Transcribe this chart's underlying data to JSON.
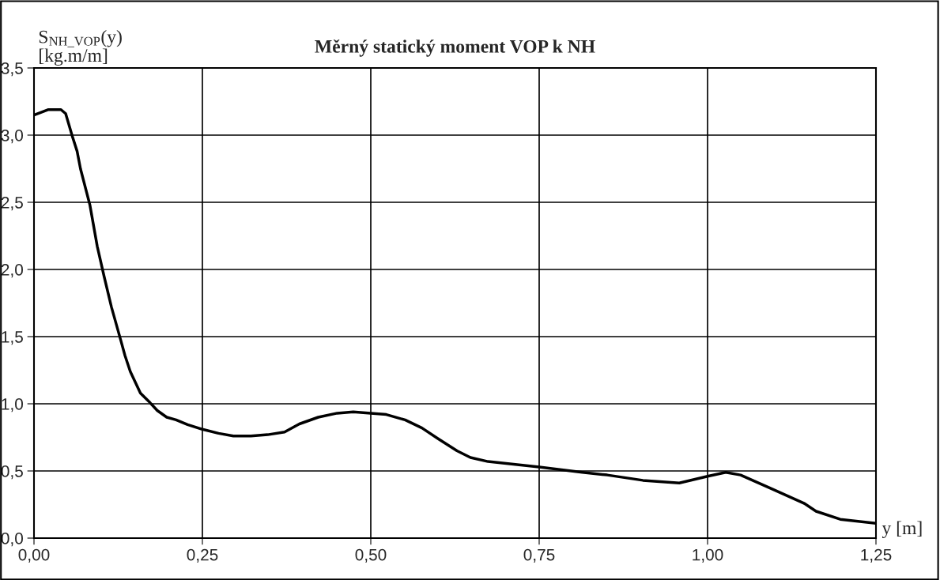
{
  "chart_data": {
    "type": "line",
    "title": "Měrný statický moment VOP k NH",
    "ylabel": "S$_{NH_VOP}$(y)\n[kg.m/m]",
    "xlabel": "y [m]",
    "x": [
      0,
      0.0215,
      0.04,
      0.047,
      0.057,
      0.064,
      0.069,
      0.083,
      0.094,
      0.104,
      0.115,
      0.129,
      0.135,
      0.143,
      0.158,
      0.172,
      0.183,
      0.197,
      0.211,
      0.228,
      0.25,
      0.274,
      0.296,
      0.322,
      0.347,
      0.372,
      0.394,
      0.422,
      0.45,
      0.474,
      0.5,
      0.523,
      0.551,
      0.576,
      0.6,
      0.628,
      0.648,
      0.674,
      0.75,
      0.814,
      0.851,
      0.904,
      0.958,
      1.0,
      1.027,
      1.049,
      1.094,
      1.143,
      1.161,
      1.197,
      1.25
    ],
    "series": [
      {
        "color": "#000000",
        "values": [
          3.15,
          3.19,
          3.19,
          3.16,
          2.99,
          2.88,
          2.75,
          2.48,
          2.17,
          1.95,
          1.72,
          1.47,
          1.36,
          1.24,
          1.08,
          1.01,
          0.95,
          0.9,
          0.88,
          0.845,
          0.81,
          0.78,
          0.76,
          0.76,
          0.77,
          0.79,
          0.85,
          0.9,
          0.93,
          0.94,
          0.93,
          0.92,
          0.88,
          0.82,
          0.74,
          0.65,
          0.6,
          0.57,
          0.53,
          0.49,
          0.47,
          0.43,
          0.41,
          0.46,
          0.49,
          0.47,
          0.37,
          0.26,
          0.2,
          0.14,
          0.11
        ]
      }
    ],
    "xlim": [
      0,
      1.25
    ],
    "ylim": [
      0,
      3.5
    ],
    "xticks": [
      {
        "value": 0,
        "label": "0,00"
      },
      {
        "value": 0.25,
        "label": "0,25"
      },
      {
        "value": 0.5,
        "label": "0,50"
      },
      {
        "value": 0.75,
        "label": "0,75"
      },
      {
        "value": 1.0,
        "label": "1,00"
      },
      {
        "value": 1.25,
        "label": "1,25"
      }
    ],
    "yticks": [
      {
        "value": 0,
        "label": "0,0"
      },
      {
        "value": 0.5,
        "label": "0,5"
      },
      {
        "value": 1.0,
        "label": "1,0"
      },
      {
        "value": 1.5,
        "label": "1,5"
      },
      {
        "value": 2.0,
        "label": "2,0"
      },
      {
        "value": 2.5,
        "label": "2,5"
      },
      {
        "value": 3.0,
        "label": "3,0"
      },
      {
        "value": 3.5,
        "label": "3,5"
      }
    ],
    "grid": true,
    "legend": false,
    "marker": "none",
    "line_style": "solid"
  }
}
